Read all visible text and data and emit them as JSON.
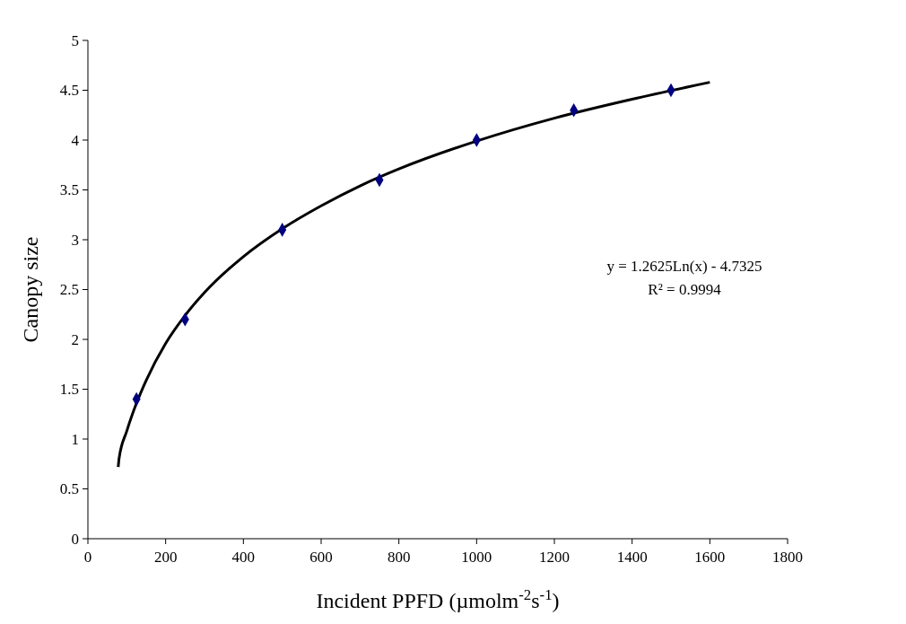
{
  "chart_data": {
    "type": "scatter",
    "xlabel": "Incident PPFD (µmolm$^{-2}$s$^{-1}$)",
    "ylabel": "Canopy size",
    "series": [
      {
        "color": "#000080",
        "marker": "diamond",
        "x": [
          125,
          250,
          500,
          750,
          1000,
          1250,
          1500
        ],
        "values": [
          1.4,
          2.2,
          3.1,
          3.6,
          4.0,
          4.3,
          4.5
        ]
      },
      {
        "type": "line",
        "color": "#000000",
        "marker": "none",
        "x": [
          78,
          80,
          100,
          125,
          150,
          200,
          250,
          300,
          400,
          500,
          600,
          700,
          800,
          1000,
          1200,
          1400,
          1600
        ],
        "values": [
          0.72,
          0.8,
          1.08,
          1.36,
          1.59,
          1.96,
          2.24,
          2.47,
          2.83,
          3.11,
          3.34,
          3.54,
          3.71,
          3.99,
          4.22,
          4.41,
          4.58
        ]
      }
    ],
    "annotations": [
      "y = 1.2625Ln(x) - 4.7325",
      "R² = 0.9994"
    ],
    "xlim": [
      0,
      1800
    ],
    "xticks": [
      0,
      200,
      400,
      600,
      800,
      1000,
      1200,
      1400,
      1600,
      1800
    ],
    "ylim": [
      0,
      5
    ],
    "yticks": [
      0,
      0.5,
      1,
      1.5,
      2,
      2.5,
      3,
      3.5,
      4,
      4.5,
      5
    ],
    "grid": false
  }
}
